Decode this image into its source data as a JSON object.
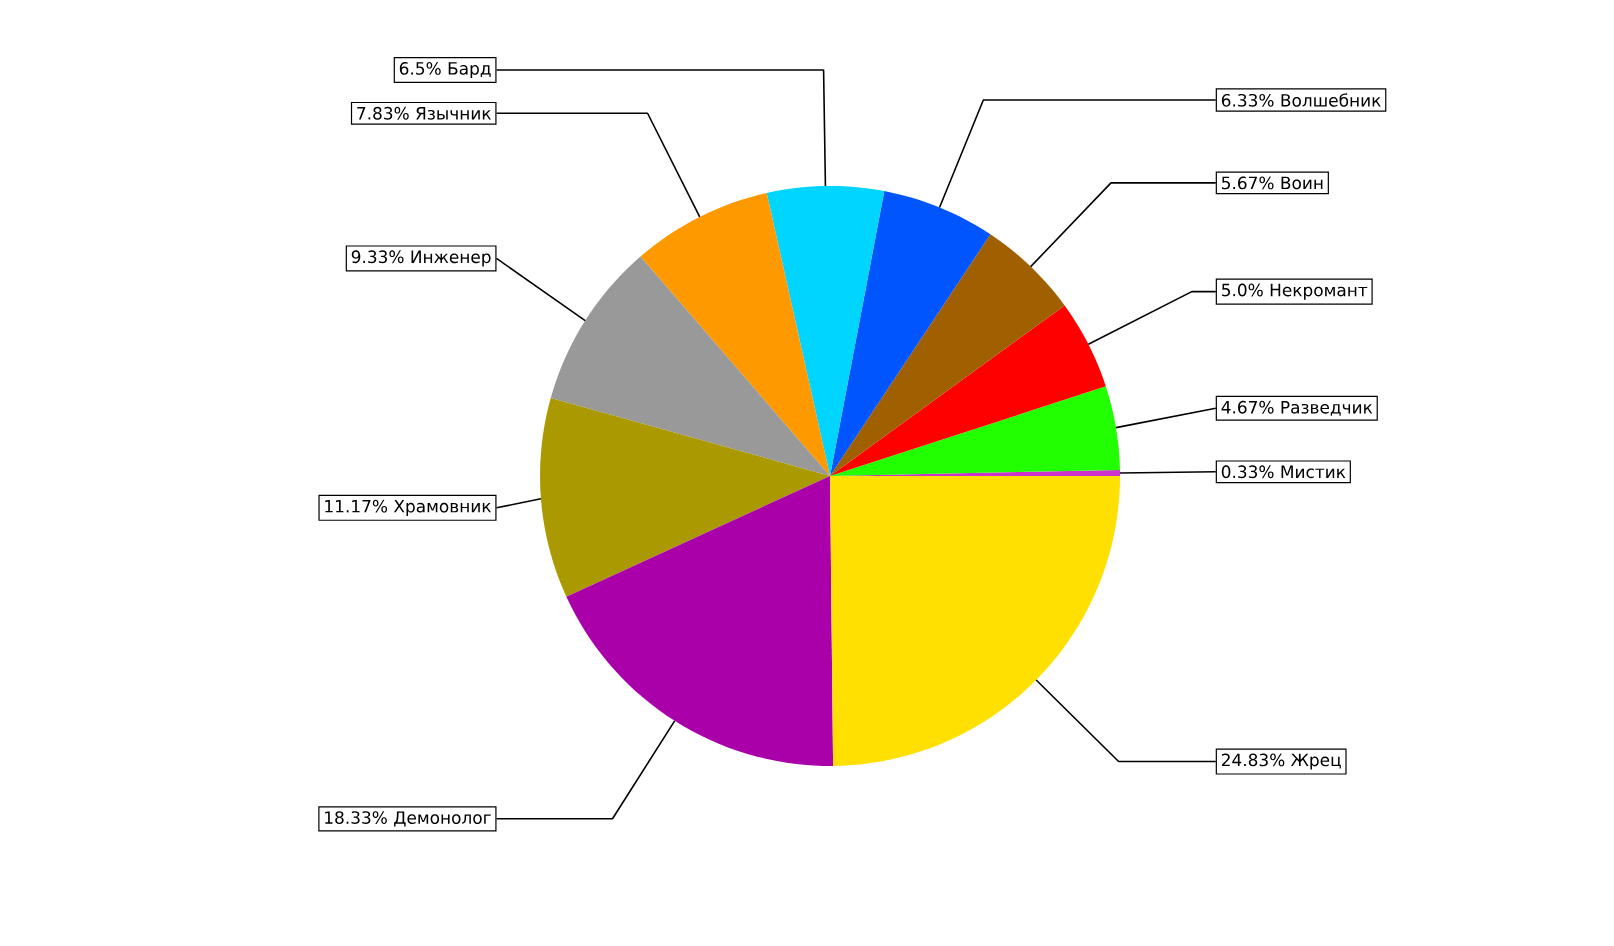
{
  "chart_data": {
    "type": "pie",
    "categories": [
      "Мистик",
      "Разведчик",
      "Некромант",
      "Воин",
      "Волшебник",
      "Бард",
      "Язычник",
      "Инженер",
      "Храмовник",
      "Демонолог",
      "Жрец"
    ],
    "values": [
      0.33,
      4.67,
      5.0,
      5.67,
      6.33,
      6.5,
      7.83,
      9.33,
      11.17,
      18.33,
      24.83
    ],
    "value_labels": [
      "0.33%",
      "4.67%",
      "5.0%",
      "5.67%",
      "6.33%",
      "6.5%",
      "7.83%",
      "9.33%",
      "11.17%",
      "18.33%",
      "24.83%"
    ],
    "colors": [
      "#cc33cc",
      "#22ff00",
      "#ff0000",
      "#a06000",
      "#0055ff",
      "#00d5ff",
      "#ff9900",
      "#999999",
      "#aa9900",
      "#aa00aa",
      "#ffe000"
    ]
  }
}
